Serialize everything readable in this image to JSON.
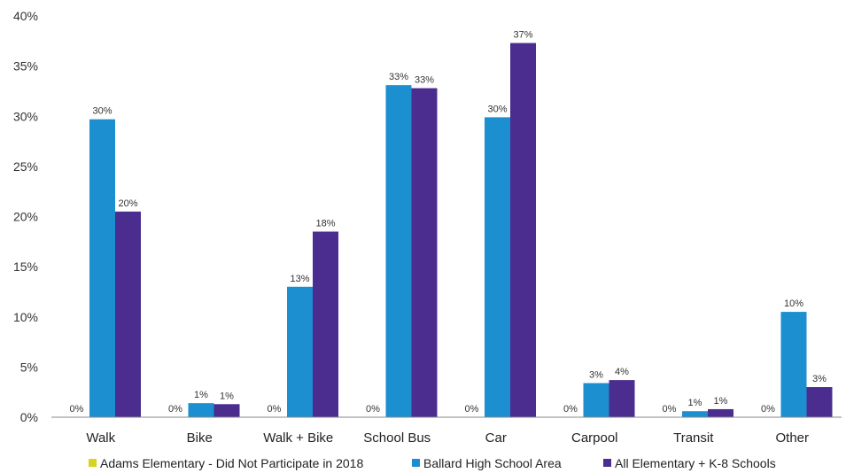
{
  "chart_data": {
    "type": "bar",
    "title": "",
    "xlabel": "",
    "ylabel": "",
    "ylim": [
      0,
      40
    ],
    "yticks": [
      "0%",
      "5%",
      "10%",
      "15%",
      "20%",
      "25%",
      "30%",
      "35%",
      "40%"
    ],
    "ytick_values": [
      0,
      5,
      10,
      15,
      20,
      25,
      30,
      35,
      40
    ],
    "grid": false,
    "legend_position": "bottom",
    "categories": [
      "Walk",
      "Bike",
      "Walk + Bike",
      "School Bus",
      "Car",
      "Carpool",
      "Transit",
      "Other"
    ],
    "series": [
      {
        "name": "Adams Elementary - Did Not Participate in 2018",
        "color": "#d9d21f",
        "values": [
          0,
          0,
          0,
          0,
          0,
          0,
          0,
          0
        ],
        "labels": [
          "0%",
          "0%",
          "0%",
          "0%",
          "0%",
          "0%",
          "0%",
          "0%"
        ]
      },
      {
        "name": "Ballard High School Area",
        "color": "#1b8fd0",
        "values": [
          29.7,
          1.4,
          13.0,
          33.1,
          29.9,
          3.4,
          0.6,
          10.5
        ],
        "labels": [
          "30%",
          "1%",
          "13%",
          "33%",
          "30%",
          "3%",
          "1%",
          "10%"
        ]
      },
      {
        "name": "All Elementary + K-8 Schools",
        "color": "#4b2d8f",
        "values": [
          20.5,
          1.3,
          18.5,
          32.8,
          37.3,
          3.7,
          0.8,
          3.0
        ],
        "labels": [
          "20%",
          "1%",
          "18%",
          "33%",
          "37%",
          "4%",
          "1%",
          "3%"
        ]
      }
    ]
  }
}
